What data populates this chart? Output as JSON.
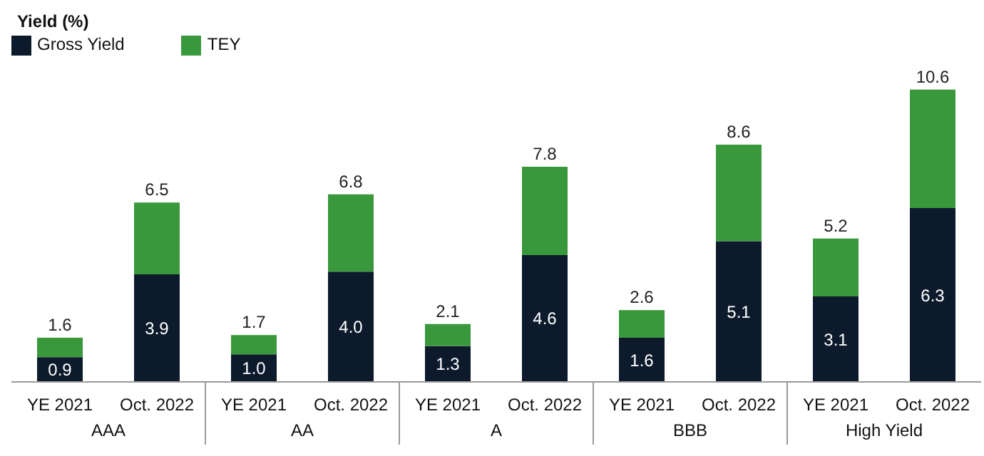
{
  "chart_data": {
    "type": "bar",
    "stacked": true,
    "ylabel": "Yield (%)",
    "legend": "top left",
    "grid": false,
    "tick_labels": "x",
    "categories": [
      "YE 2021",
      "Oct. 2022",
      "YE 2021",
      "Oct. 2022",
      "YE 2021",
      "Oct. 2022",
      "YE 2021",
      "Oct. 2022",
      "YE 2021",
      "Oct. 2022"
    ],
    "annotations": [
      "AAA",
      "AA",
      "A",
      "BBB",
      "High Yield"
    ],
    "series": [
      {
        "name": "Gross Yield",
        "color": "#0c1a2b",
        "values": [
          0.9,
          3.9,
          1.0,
          4.0,
          1.3,
          4.6,
          1.6,
          5.1,
          3.1,
          6.3
        ],
        "value_labels": [
          "0.9",
          "3.9",
          "1.0",
          "4.0",
          "1.3",
          "4.6",
          "1.6",
          "5.1",
          "3.1",
          "6.3"
        ]
      },
      {
        "name": "TEY",
        "color": "#3a983c",
        "values": [
          0.7,
          2.6,
          0.7,
          2.8,
          0.8,
          3.2,
          1.0,
          3.5,
          2.1,
          4.3
        ]
      }
    ],
    "totals": [
      "1.6",
      "6.5",
      "1.7",
      "6.8",
      "2.1",
      "7.8",
      "2.6",
      "8.6",
      "5.2",
      "10.6"
    ]
  }
}
